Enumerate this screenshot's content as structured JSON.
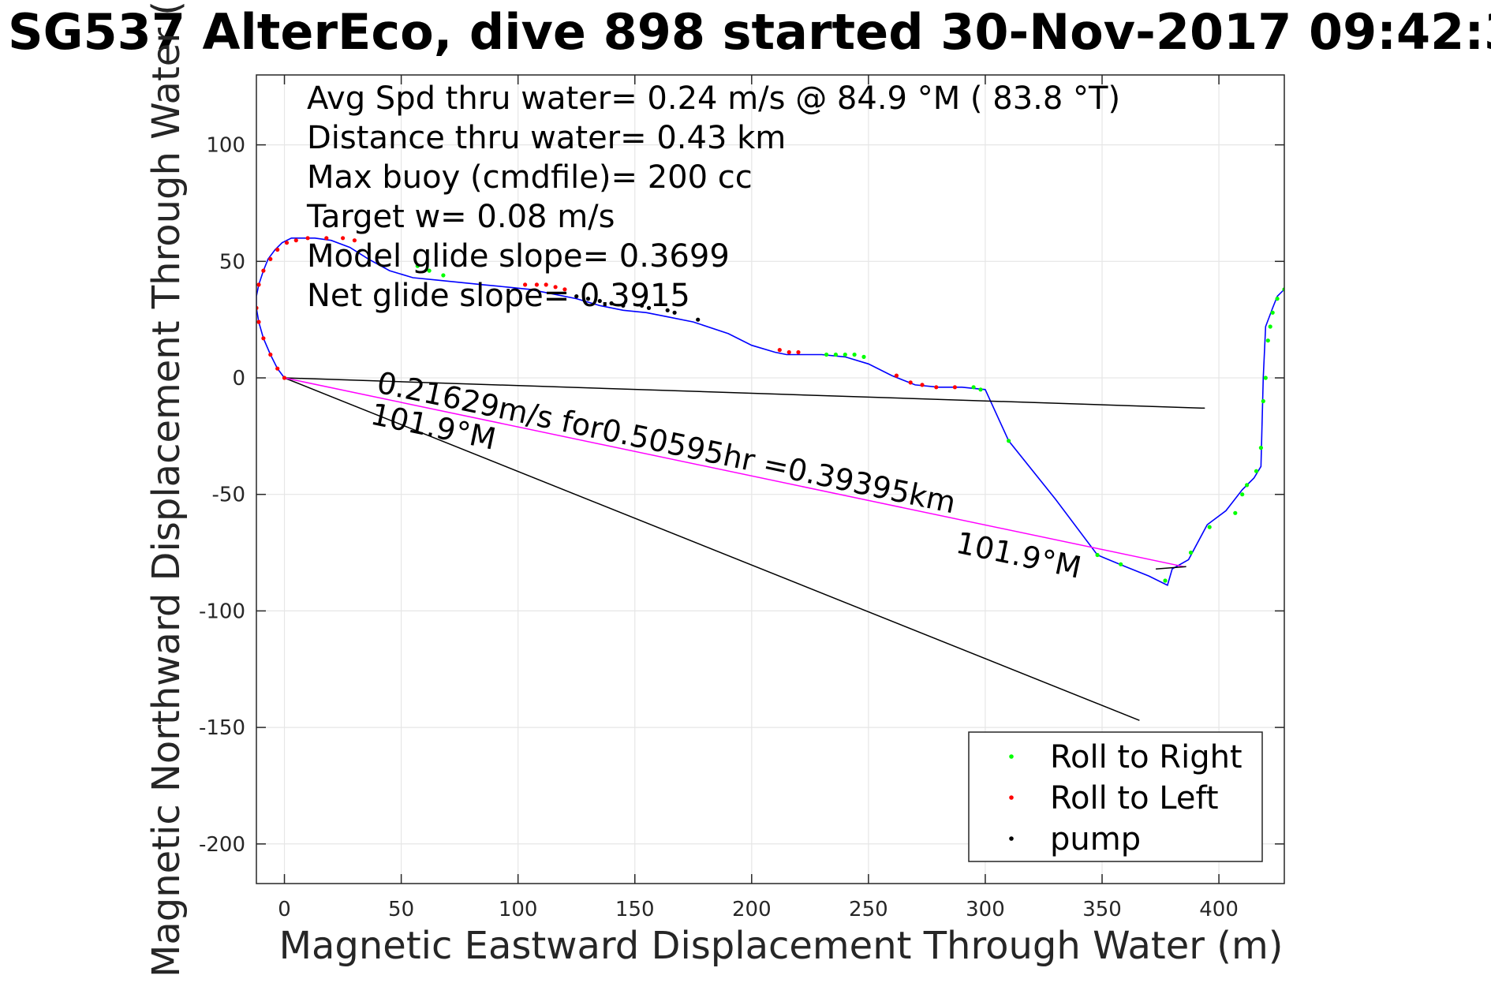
{
  "chart_data": {
    "type": "line",
    "title": "SG537 AlterEco, dive 898 started 30-Nov-2017 09:42:3",
    "xlabel": "Magnetic Eastward Displacement Through Water (m)",
    "ylabel": "Magnetic Northward Displacement Through Water (",
    "xlim": [
      -12,
      428
    ],
    "ylim": [
      -217,
      130
    ],
    "xticks": [
      0,
      50,
      100,
      150,
      200,
      250,
      300,
      350,
      400
    ],
    "yticks": [
      100,
      50,
      0,
      -50,
      -100,
      -150,
      -200
    ],
    "xtick_labels": [
      "0",
      "50",
      "100",
      "150",
      "200",
      "250",
      "300",
      "350",
      "400"
    ],
    "ytick_labels": [
      "100",
      "50",
      "0",
      "-50",
      "-100",
      "-150",
      "-200"
    ],
    "grid": true,
    "legend_position": "bottom-right",
    "info_lines": [
      "Avg Spd thru water=  0.24 m/s @  84.9 °M ( 83.8 °T)",
      "Distance thru water=  0.43 km",
      "Max buoy (cmdfile)= 200 cc",
      "Target w= 0.08 m/s",
      "Model glide slope= 0.3699",
      "Net glide slope= 0.3915"
    ],
    "annotations": {
      "current_text": "0.21629m/s for0.50595hr =0.39395km",
      "current_heading_near": "101.9°M",
      "current_heading_far": "101.9°M"
    },
    "series": [
      {
        "name": "track",
        "style": "line",
        "color": "#0000ff",
        "x": [
          0,
          -3,
          -6,
          -9,
          -11,
          -12,
          -12,
          -11,
          -9,
          -7,
          -4,
          -1,
          3,
          8,
          13,
          20,
          28,
          36,
          45,
          55,
          65,
          75,
          85,
          95,
          105,
          115,
          125,
          135,
          145,
          155,
          165,
          175,
          190,
          200,
          210,
          215,
          220,
          230,
          240,
          250,
          260,
          270,
          280,
          290,
          300,
          310,
          330,
          348,
          360,
          370,
          378,
          380,
          387,
          395,
          403,
          410,
          415,
          418,
          419,
          420,
          423,
          425,
          428
        ],
        "y": [
          0,
          4,
          10,
          17,
          24,
          30,
          35,
          40,
          46,
          51,
          55,
          58,
          60,
          60,
          60,
          59,
          56,
          51,
          46,
          43,
          42,
          41,
          40,
          39,
          38,
          36,
          34,
          31,
          29,
          28,
          26,
          24,
          19,
          14,
          11,
          10,
          10,
          10,
          9,
          6,
          1,
          -3,
          -4,
          -4,
          -5,
          -27,
          -52,
          -76,
          -81,
          -85,
          -89,
          -82,
          -78,
          -63,
          -57,
          -48,
          -43,
          -38,
          0,
          22,
          30,
          35,
          38
        ]
      },
      {
        "name": "Roll to Right",
        "style": "marker",
        "color": "#00ff00",
        "x": [
          57,
          62,
          68,
          232,
          236,
          240,
          244,
          248,
          295,
          298,
          310,
          348,
          358,
          377,
          388,
          396,
          407,
          410,
          412,
          416,
          418,
          419,
          420,
          421,
          422,
          423,
          425,
          428
        ],
        "y": [
          48,
          46,
          44,
          10,
          10,
          10,
          10,
          9,
          -4,
          -5,
          -27,
          -76,
          -80,
          -87,
          -75,
          -64,
          -58,
          -50,
          -46,
          -40,
          -30,
          -10,
          0,
          16,
          22,
          28,
          34,
          38
        ]
      },
      {
        "name": "Roll to Left",
        "style": "marker",
        "color": "#ff0000",
        "x": [
          0,
          -3,
          -6,
          -9,
          -11,
          -12,
          -11,
          -9,
          -6,
          -3,
          1,
          5,
          10,
          18,
          25,
          30,
          103,
          108,
          112,
          116,
          120,
          212,
          216,
          220,
          262,
          268,
          273,
          279,
          287
        ],
        "y": [
          0,
          4,
          10,
          17,
          24,
          30,
          40,
          46,
          51,
          55,
          58,
          59,
          60,
          60,
          60,
          59,
          40,
          40,
          40,
          39,
          38,
          12,
          11,
          11,
          1,
          -2,
          -3,
          -4,
          -4
        ]
      },
      {
        "name": "pump",
        "style": "marker",
        "color": "#000000",
        "x": [
          125,
          130,
          135,
          140,
          145,
          153,
          156,
          164,
          167,
          177
        ],
        "y": [
          35,
          34,
          33,
          32,
          31,
          31,
          30,
          29,
          28,
          25
        ]
      },
      {
        "name": "pump",
        "style": "line",
        "color": "#000000",
        "x": [
          0,
          394
        ],
        "y": [
          0,
          -13
        ]
      },
      {
        "name": "pump",
        "style": "line",
        "color": "#000000",
        "x": [
          0,
          366
        ],
        "y": [
          0,
          -147
        ]
      },
      {
        "name": "current",
        "style": "line",
        "color": "#ff00ff",
        "x": [
          0,
          385
        ],
        "y": [
          0,
          -81
        ]
      },
      {
        "name": "current",
        "style": "line",
        "color": "#000000",
        "x": [
          373,
          386
        ],
        "y": [
          -82,
          -81
        ]
      }
    ],
    "legend": [
      {
        "label": "Roll to Right",
        "color": "#00ff00"
      },
      {
        "label": "Roll to Left",
        "color": "#ff0000"
      },
      {
        "label": "pump",
        "color": "#000000"
      }
    ]
  }
}
